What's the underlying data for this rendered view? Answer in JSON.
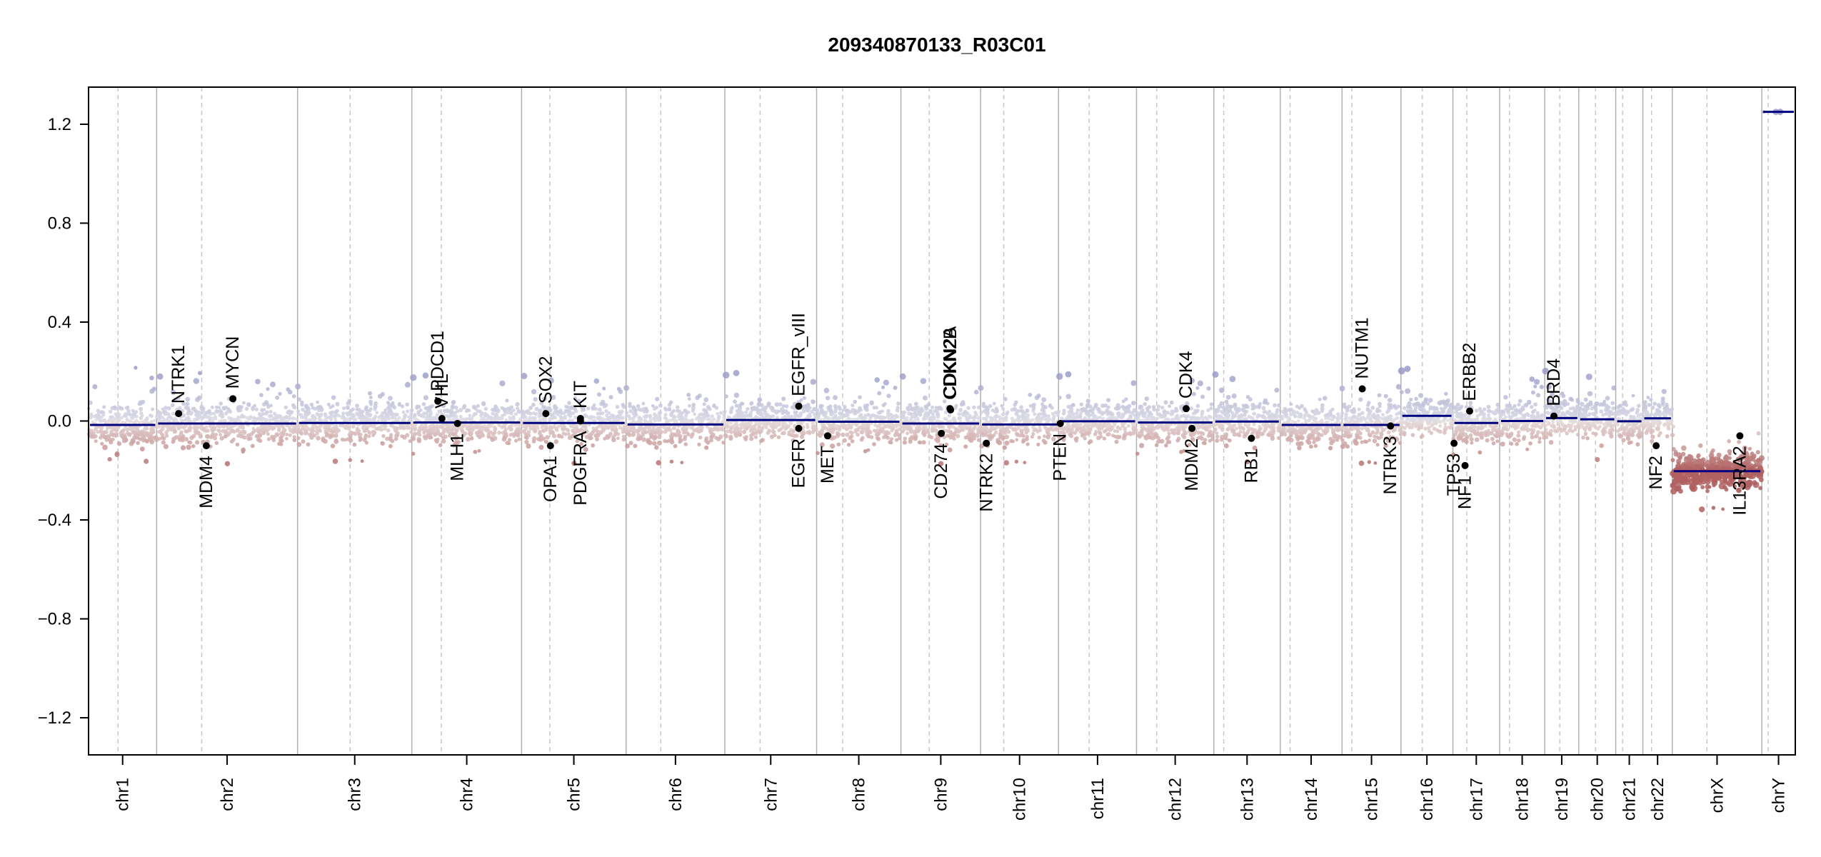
{
  "chart_data": {
    "type": "scatter",
    "title": "209340870133_R03C01",
    "xlabel": "",
    "ylabel": "",
    "ylim": [
      -1.35,
      1.35
    ],
    "y_ticks": [
      "1.2",
      "0.8",
      "0.4",
      "0.0",
      "−0.4",
      "−0.8",
      "−1.2"
    ],
    "colors": {
      "gain": "#9a9ac8",
      "loss": "#b06060",
      "segment": "#00007f",
      "gene_point": "#000000",
      "frame": "#000000",
      "chr_boundary": "#b0b0b0",
      "centromere": "#c8c8c8"
    },
    "chromosomes": [
      {
        "name": "chr1",
        "start": 0,
        "end": 118,
        "centromere": 51,
        "segment": -0.016
      },
      {
        "name": "chr2",
        "start": 118,
        "end": 362,
        "centromere": 196,
        "segment": -0.01
      },
      {
        "name": "chr3",
        "start": 362,
        "end": 560,
        "centromere": 453,
        "segment": -0.008
      },
      {
        "name": "chr4",
        "start": 560,
        "end": 750,
        "centromere": 611,
        "segment": -0.006
      },
      {
        "name": "chr5",
        "start": 750,
        "end": 931,
        "centromere": 799,
        "segment": -0.008
      },
      {
        "name": "chr6",
        "start": 931,
        "end": 1102,
        "centromere": 991,
        "segment": -0.014
      },
      {
        "name": "chr7",
        "start": 1102,
        "end": 1261,
        "centromere": 1163,
        "segment": 0.004
      },
      {
        "name": "chr8",
        "start": 1261,
        "end": 1407,
        "centromere": 1306,
        "segment": -0.003
      },
      {
        "name": "chr9",
        "start": 1407,
        "end": 1545,
        "centromere": 1456,
        "segment": -0.01
      },
      {
        "name": "chr10",
        "start": 1545,
        "end": 1680,
        "centromere": 1585,
        "segment": -0.014
      },
      {
        "name": "chr11",
        "start": 1680,
        "end": 1815,
        "centromere": 1733,
        "segment": -0.001
      },
      {
        "name": "chr12",
        "start": 1815,
        "end": 1949,
        "centromere": 1850,
        "segment": -0.006
      },
      {
        "name": "chr13",
        "start": 1949,
        "end": 2064,
        "centromere": 1966,
        "segment": -0.002
      },
      {
        "name": "chr14",
        "start": 2064,
        "end": 2171,
        "centromere": 2081,
        "segment": -0.016
      },
      {
        "name": "chr15",
        "start": 2171,
        "end": 2273,
        "centromere": 2188,
        "segment": -0.016
      },
      {
        "name": "chr16",
        "start": 2273,
        "end": 2363,
        "centromere": 2310,
        "segment": 0.021
      },
      {
        "name": "chr17",
        "start": 2363,
        "end": 2444,
        "centromere": 2387,
        "segment": -0.008
      },
      {
        "name": "chr18",
        "start": 2444,
        "end": 2522,
        "centromere": 2461,
        "segment": 0.0
      },
      {
        "name": "chr19",
        "start": 2522,
        "end": 2581,
        "centromere": 2548,
        "segment": 0.012
      },
      {
        "name": "chr20",
        "start": 2581,
        "end": 2645,
        "centromere": 2610,
        "segment": 0.007
      },
      {
        "name": "chr21",
        "start": 2645,
        "end": 2692,
        "centromere": 2657,
        "segment": -0.001
      },
      {
        "name": "chr22",
        "start": 2692,
        "end": 2743,
        "centromere": 2707,
        "segment": 0.011
      },
      {
        "name": "chrX",
        "start": 2743,
        "end": 2898,
        "centromere": 2803,
        "segment": -0.203
      },
      {
        "name": "chrY",
        "start": 2898,
        "end": 2956,
        "centromere": 2909,
        "segment": 1.25
      }
    ],
    "genes": [
      {
        "name": "NTRK1",
        "pos": 156,
        "y": 0.03,
        "label_side": "above"
      },
      {
        "name": "MDM4",
        "pos": 204,
        "y": -0.1,
        "label_side": "below"
      },
      {
        "name": "MYCN",
        "pos": 250,
        "y": 0.09,
        "label_side": "above"
      },
      {
        "name": "PDCD1",
        "pos": 605,
        "y": 0.08,
        "label_side": "above"
      },
      {
        "name": "VHL",
        "pos": 612,
        "y": 0.01,
        "label_side": "above"
      },
      {
        "name": "MLH1",
        "pos": 639,
        "y": -0.01,
        "label_side": "below"
      },
      {
        "name": "SOX2",
        "pos": 792,
        "y": 0.03,
        "label_side": "above"
      },
      {
        "name": "OPA1",
        "pos": 800,
        "y": -0.1,
        "label_side": "below"
      },
      {
        "name": "KIT",
        "pos": 852,
        "y": 0.01,
        "label_side": "above"
      },
      {
        "name": "PDGFRA",
        "pos": 852,
        "y": 0.0,
        "label_side": "below"
      },
      {
        "name": "EGFR_vIII",
        "pos": 1230,
        "y": 0.06,
        "label_side": "above"
      },
      {
        "name": "EGFR",
        "pos": 1230,
        "y": -0.03,
        "label_side": "below"
      },
      {
        "name": "MET",
        "pos": 1280,
        "y": -0.06,
        "label_side": "below"
      },
      {
        "name": "CD274",
        "pos": 1477,
        "y": -0.05,
        "label_side": "below"
      },
      {
        "name": "CDKN2A",
        "pos": 1492,
        "y": 0.05,
        "label_side": "above"
      },
      {
        "name": "CDKN2B",
        "pos": 1493,
        "y": 0.045,
        "label_side": "above"
      },
      {
        "name": "NTRK2",
        "pos": 1555,
        "y": -0.09,
        "label_side": "below"
      },
      {
        "name": "PTEN",
        "pos": 1683,
        "y": -0.01,
        "label_side": "below"
      },
      {
        "name": "CDK4",
        "pos": 1901,
        "y": 0.05,
        "label_side": "above"
      },
      {
        "name": "MDM2",
        "pos": 1911,
        "y": -0.03,
        "label_side": "below"
      },
      {
        "name": "RB1",
        "pos": 2014,
        "y": -0.07,
        "label_side": "below"
      },
      {
        "name": "NUTM1",
        "pos": 2206,
        "y": 0.13,
        "label_side": "above"
      },
      {
        "name": "NTRK3",
        "pos": 2255,
        "y": -0.02,
        "label_side": "below"
      },
      {
        "name": "TP53",
        "pos": 2365,
        "y": -0.09,
        "label_side": "below"
      },
      {
        "name": "NF1",
        "pos": 2384,
        "y": -0.18,
        "label_side": "below"
      },
      {
        "name": "ERBB2",
        "pos": 2392,
        "y": 0.04,
        "label_side": "above"
      },
      {
        "name": "BRD4",
        "pos": 2538,
        "y": 0.02,
        "label_side": "above"
      },
      {
        "name": "NF2",
        "pos": 2715,
        "y": -0.1,
        "label_side": "below"
      },
      {
        "name": "IL13RA2",
        "pos": 2860,
        "y": -0.06,
        "label_side": "below"
      }
    ]
  }
}
